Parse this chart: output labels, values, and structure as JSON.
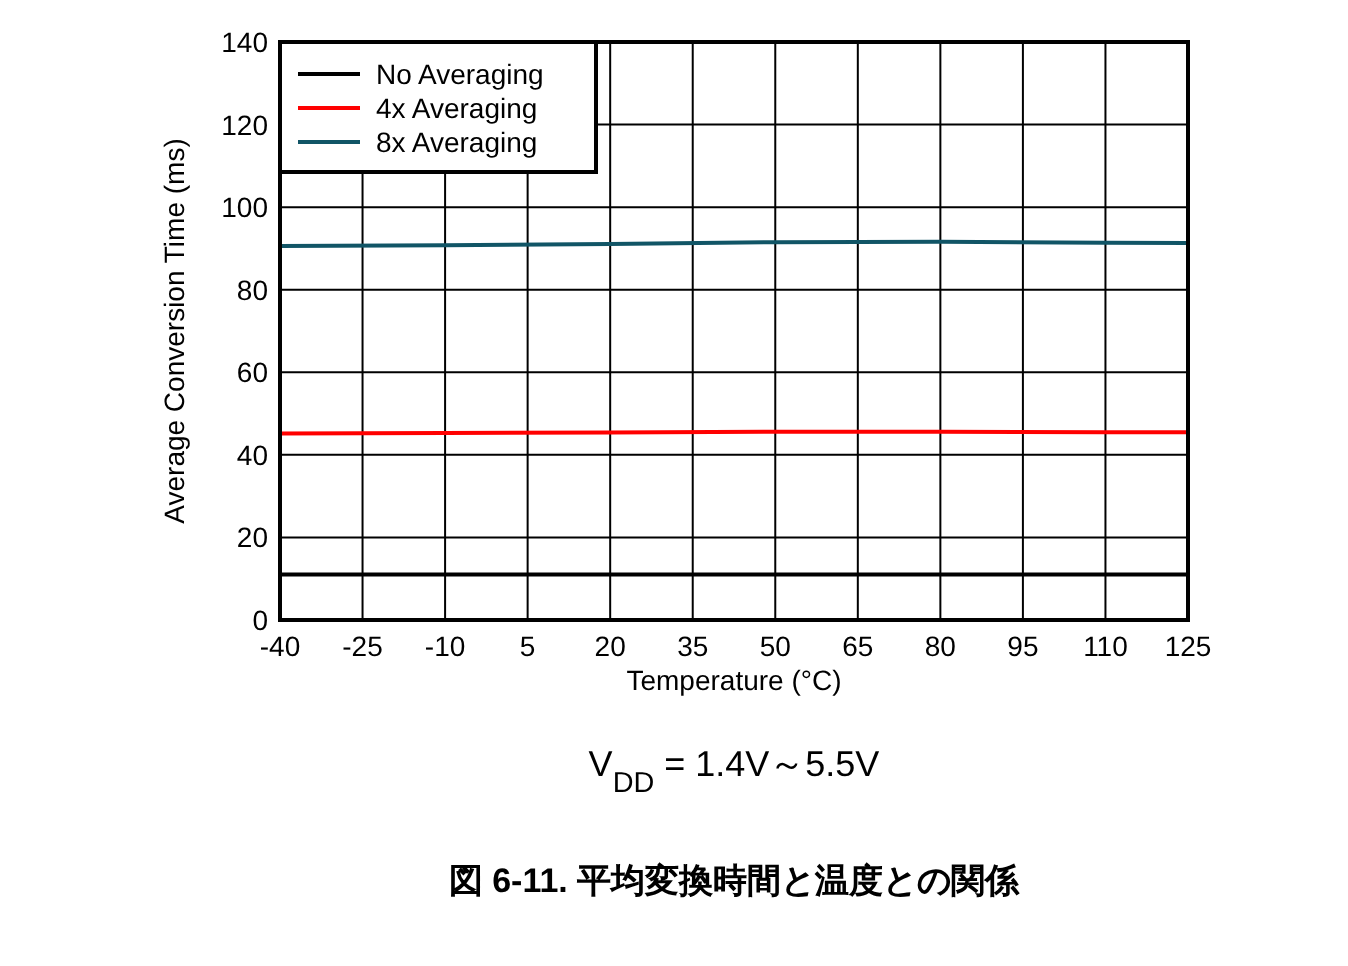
{
  "chart_data": {
    "type": "line",
    "title": "図 6-11. 平均変換時間と温度との関係",
    "xlabel": "Temperature (°C)",
    "ylabel": "Average Conversion Time (ms)",
    "annotations": [
      "V$_{DD}$ = 1.4V～5.5V"
    ],
    "x": [
      -40,
      -10,
      20,
      50,
      80,
      110,
      125
    ],
    "series": [
      {
        "name": "No Averaging",
        "color": "#000000",
        "values": [
          11,
          11,
          11,
          11,
          11,
          11,
          11
        ]
      },
      {
        "name": "4x Averaging",
        "color": "#ff0000",
        "values": [
          45.2,
          45.3,
          45.4,
          45.6,
          45.6,
          45.5,
          45.5
        ]
      },
      {
        "name": "8x Averaging",
        "color": "#115566",
        "values": [
          90.6,
          90.8,
          91.1,
          91.5,
          91.6,
          91.4,
          91.3
        ]
      }
    ],
    "xlim": [
      -40,
      125
    ],
    "xticks": [
      -40,
      -25,
      -10,
      5,
      20,
      35,
      50,
      65,
      80,
      95,
      110,
      125
    ],
    "ylim": [
      0,
      140
    ],
    "yticks": [
      0,
      20,
      40,
      60,
      80,
      100,
      120,
      140
    ],
    "grid": true,
    "legend": "top left"
  }
}
